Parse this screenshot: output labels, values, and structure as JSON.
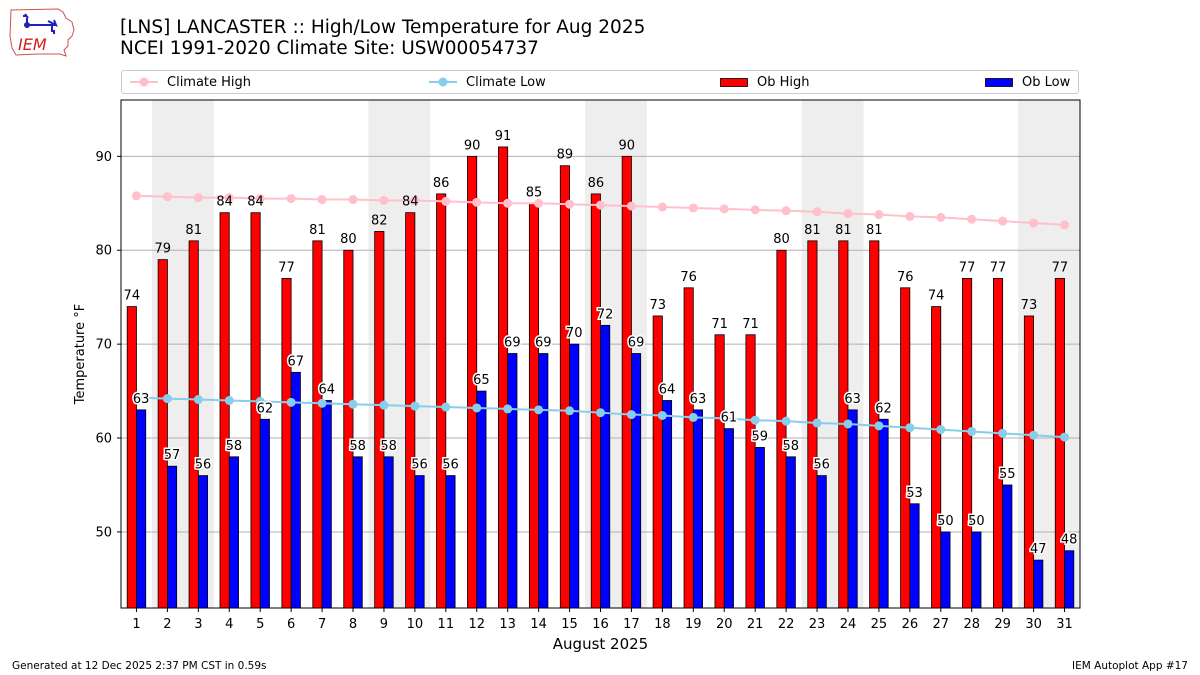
{
  "header": {
    "title_line1": "[LNS] LANCASTER :: High/Low Temperature for Aug 2025",
    "title_line2": "NCEI 1991-2020 Climate Site: USW00054737",
    "logo_text": "IEM"
  },
  "footer": {
    "generated": "Generated at 12 Dec 2025 2:37 PM CST in 0.59s",
    "app": "IEM Autoplot App #17"
  },
  "colors": {
    "ob_high": "#ff0000",
    "ob_low": "#0000ff",
    "climate_high": "#ffc0cb",
    "climate_low": "#87ceeb",
    "weekend_shade": "#eeeeee",
    "grid": "#b0b0b0"
  },
  "chart_data": {
    "type": "bar",
    "title": "[LNS] LANCASTER :: High/Low Temperature for Aug 2025",
    "subtitle": "NCEI 1991-2020 Climate Site: USW00054737",
    "xlabel": "August 2025",
    "ylabel": "Temperature °F",
    "ylim": [
      41.9,
      96.0
    ],
    "xlim": [
      0.5,
      31.5
    ],
    "yticks": [
      50,
      60,
      70,
      80,
      90
    ],
    "grid": "horizontal",
    "legend_position": "top",
    "categories": [
      "1",
      "2",
      "3",
      "4",
      "5",
      "6",
      "7",
      "8",
      "9",
      "10",
      "11",
      "12",
      "13",
      "14",
      "15",
      "16",
      "17",
      "18",
      "19",
      "20",
      "21",
      "22",
      "23",
      "24",
      "25",
      "26",
      "27",
      "28",
      "29",
      "30",
      "31"
    ],
    "weekend_days": [
      2,
      3,
      9,
      10,
      16,
      17,
      23,
      24,
      30,
      31
    ],
    "series": [
      {
        "name": "Ob High",
        "kind": "bar",
        "color": "#ff0000",
        "values": [
          74,
          79,
          81,
          84,
          84,
          77,
          81,
          80,
          82,
          84,
          86,
          90,
          91,
          85,
          89,
          86,
          90,
          73,
          76,
          71,
          71,
          80,
          81,
          81,
          81,
          76,
          74,
          77,
          77,
          73,
          77
        ]
      },
      {
        "name": "Ob Low",
        "kind": "bar",
        "color": "#0000ff",
        "values": [
          63,
          57,
          56,
          58,
          62,
          67,
          64,
          58,
          58,
          56,
          56,
          65,
          69,
          69,
          70,
          72,
          69,
          64,
          63,
          61,
          59,
          58,
          56,
          63,
          62,
          53,
          50,
          50,
          55,
          47,
          48
        ]
      },
      {
        "name": "Climate High",
        "kind": "line",
        "color": "#ffc0cb",
        "values": [
          85.8,
          85.7,
          85.6,
          85.6,
          85.5,
          85.5,
          85.4,
          85.4,
          85.3,
          85.3,
          85.2,
          85.1,
          85.0,
          85.0,
          84.9,
          84.8,
          84.7,
          84.6,
          84.5,
          84.4,
          84.3,
          84.2,
          84.1,
          83.9,
          83.8,
          83.6,
          83.5,
          83.3,
          83.1,
          82.9,
          82.7
        ]
      },
      {
        "name": "Climate Low",
        "kind": "line",
        "color": "#87ceeb",
        "values": [
          64.3,
          64.2,
          64.1,
          64.0,
          63.9,
          63.8,
          63.7,
          63.6,
          63.5,
          63.4,
          63.3,
          63.2,
          63.1,
          63.0,
          62.9,
          62.7,
          62.5,
          62.4,
          62.2,
          62.1,
          61.9,
          61.8,
          61.6,
          61.5,
          61.3,
          61.1,
          60.9,
          60.7,
          60.5,
          60.3,
          60.1
        ]
      }
    ],
    "legend": [
      "Climate High",
      "Climate Low",
      "Ob High",
      "Ob Low"
    ]
  }
}
